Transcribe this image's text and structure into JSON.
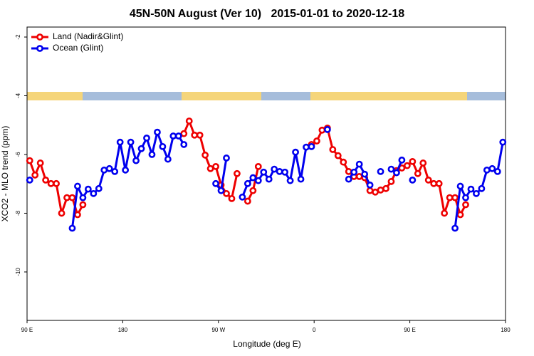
{
  "chart_data": {
    "type": "line",
    "title": "45N-50N August (Ver 10)   2015-01-01 to 2020-12-18",
    "x_label": "Longitude (deg E)",
    "y_label": "XCO2 - MLO trend (ppm)",
    "xlim": [
      90,
      540
    ],
    "xticks": [
      {
        "value": 90,
        "label": "90 E"
      },
      180,
      {
        "value": 270,
        "label": "90 W"
      },
      {
        "value": 360,
        "label": "0"
      },
      {
        "value": 450,
        "label": "90 E"
      },
      {
        "value": 540,
        "label": "180"
      }
    ],
    "ylim": [
      -11.65,
      -1.66
    ],
    "yticks": [
      -2,
      -4,
      -6,
      -8,
      -10
    ],
    "legend": "top-left",
    "x": [
      92.5,
      97.5,
      102.5,
      107.5,
      112.5,
      117.5,
      122.5,
      127.5,
      132.5,
      137.5,
      142.5,
      147.5,
      152.5,
      157.5,
      162.5,
      167.5,
      172.5,
      177.5,
      182.5,
      187.5,
      192.5,
      197.5,
      202.5,
      207.5,
      212.5,
      217.5,
      222.5,
      227.5,
      232.5,
      237.5,
      242.5,
      247.5,
      252.5,
      257.5,
      262.5,
      267.5,
      272.5,
      277.5,
      282.5,
      287.5,
      292.5,
      297.5,
      302.5,
      307.5,
      312.5,
      317.5,
      322.5,
      327.5,
      332.5,
      337.5,
      342.5,
      347.5,
      352.5,
      357.5,
      362.5,
      367.5,
      372.5,
      377.5,
      382.5,
      387.5,
      392.5,
      397.5,
      402.5,
      407.5,
      412.5,
      417.5,
      422.5,
      427.5,
      432.5,
      437.5,
      442.5,
      447.5,
      452.5,
      457.5,
      462.5,
      467.5,
      472.5,
      477.5,
      482.5,
      487.5,
      492.5,
      497.5,
      502.5,
      507.5,
      512.5,
      517.5,
      522.5,
      527.5,
      532.5,
      537.5
    ],
    "series": [
      {
        "name": "Land (Nadir&Glint)",
        "color": "#ee0000",
        "values": [
          -6.21,
          -6.7,
          -6.29,
          -6.87,
          -6.99,
          -6.99,
          -8.0,
          -7.47,
          -7.47,
          -8.05,
          -7.71,
          null,
          null,
          null,
          null,
          null,
          null,
          null,
          null,
          null,
          null,
          null,
          null,
          null,
          null,
          null,
          null,
          null,
          null,
          -5.29,
          -4.86,
          -5.34,
          -5.34,
          -6.02,
          -6.48,
          -6.41,
          -7.04,
          -7.33,
          -7.5,
          -6.65,
          null,
          -7.59,
          -7.23,
          -6.41,
          null,
          null,
          null,
          null,
          null,
          null,
          null,
          null,
          null,
          -5.66,
          -5.54,
          -5.17,
          -5.1,
          -5.83,
          -6.04,
          -6.26,
          -6.58,
          -6.75,
          -6.75,
          -6.79,
          -7.23,
          -7.28,
          -7.21,
          -7.16,
          -6.92,
          -6.55,
          -6.46,
          -6.38,
          -6.24,
          -6.65,
          -6.29,
          -6.87,
          -6.99,
          -6.99,
          -8.0,
          -7.47,
          -7.47,
          -8.05,
          -7.71,
          null,
          null,
          null,
          null,
          null,
          null,
          null
        ]
      },
      {
        "name": "Ocean (Glint)",
        "color": "#0000ee",
        "values": [
          -6.87,
          null,
          null,
          null,
          null,
          null,
          null,
          null,
          -8.51,
          -7.08,
          -7.47,
          -7.18,
          -7.33,
          -7.16,
          -6.53,
          -6.48,
          -6.58,
          -5.58,
          -6.53,
          -5.58,
          -6.21,
          -5.8,
          -5.44,
          -6.0,
          -5.24,
          -5.73,
          -6.16,
          -5.37,
          -5.37,
          -5.66,
          null,
          null,
          null,
          null,
          null,
          -6.99,
          -7.23,
          -6.12,
          null,
          null,
          -7.45,
          -6.99,
          -6.79,
          -6.89,
          -6.6,
          -6.84,
          -6.5,
          -6.58,
          -6.6,
          -6.89,
          -5.92,
          -6.84,
          -5.75,
          -5.73,
          null,
          null,
          -5.15,
          null,
          null,
          null,
          -6.84,
          -6.6,
          -6.33,
          -6.67,
          -7.04,
          null,
          -6.58,
          null,
          -6.5,
          -6.62,
          -6.19,
          null,
          -6.87,
          null,
          null,
          null,
          null,
          null,
          null,
          null,
          -8.51,
          -7.08,
          -7.47,
          -7.18,
          -7.33,
          -7.16,
          -6.53,
          -6.48,
          -6.58,
          -5.58
        ]
      }
    ]
  }
}
